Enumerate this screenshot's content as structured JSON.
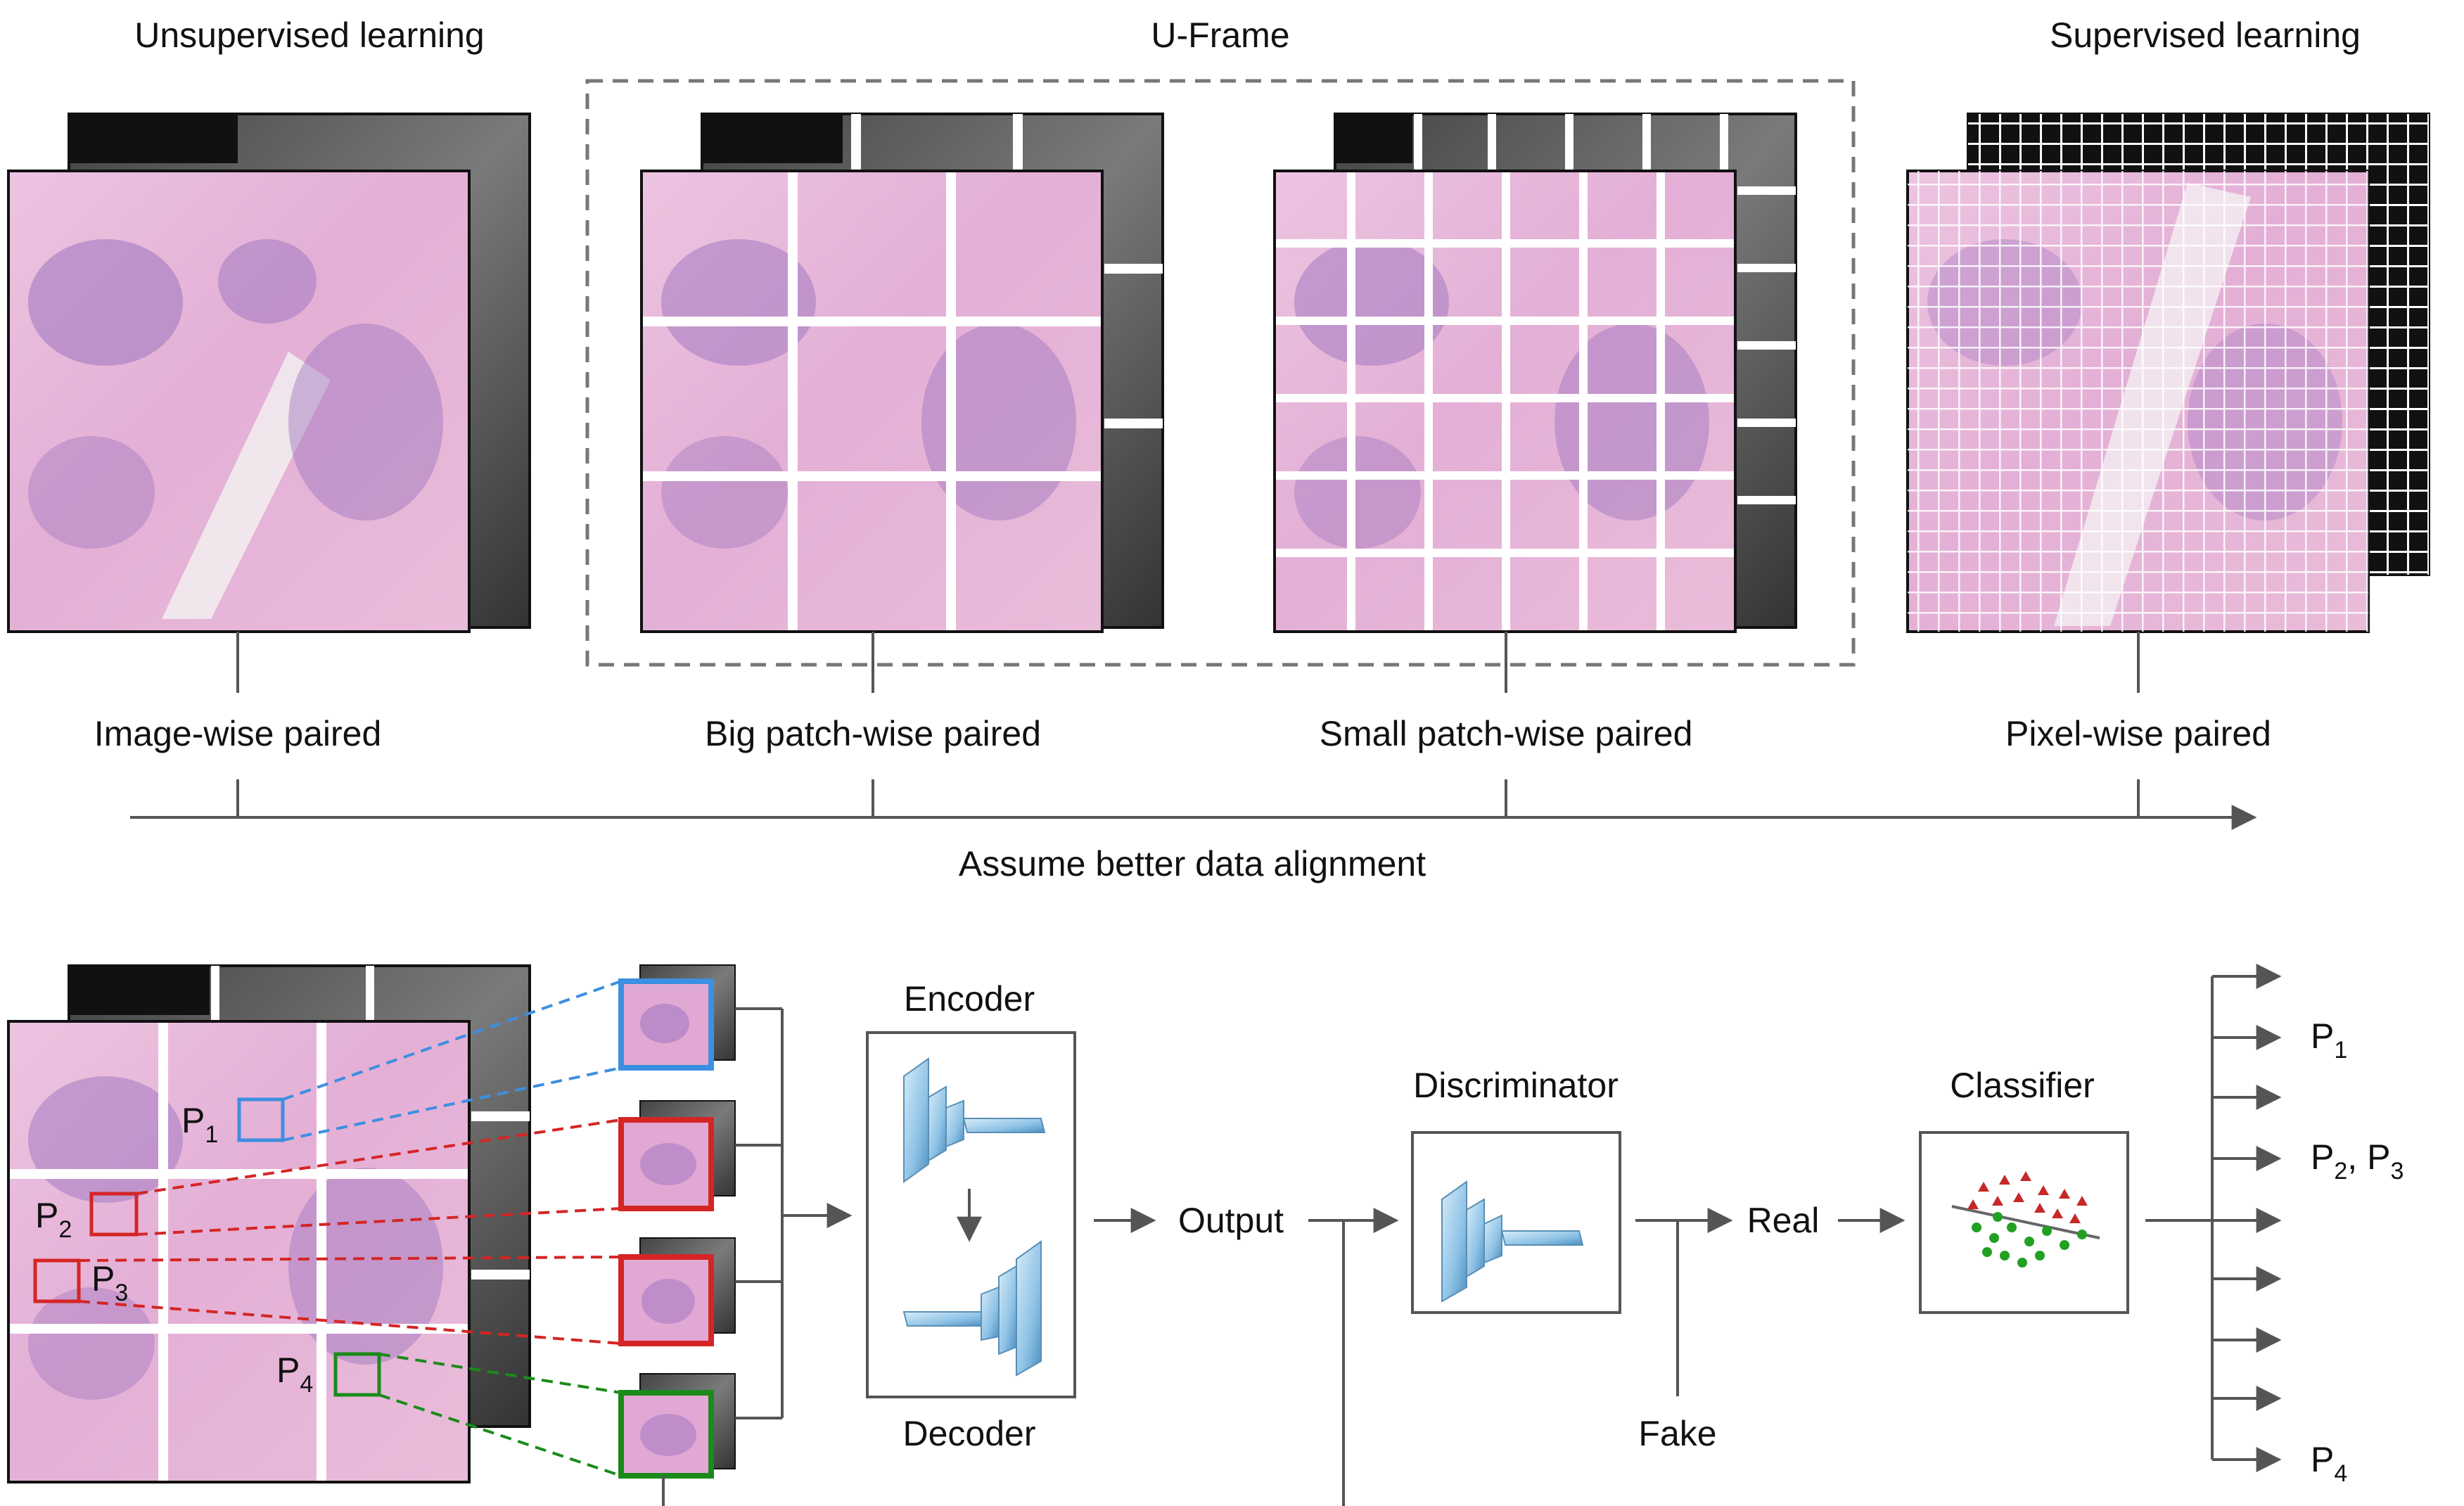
{
  "top": {
    "headings": {
      "unsupervised": "Unsupervised learning",
      "uframe": "U-Frame",
      "supervised": "Supervised learning"
    },
    "pairing_labels": {
      "image_wise": "Image-wise paired",
      "big_patch": "Big patch-wise paired",
      "small_patch": "Small patch-wise paired",
      "pixel_wise": "Pixel-wise paired"
    },
    "axis_label": "Assume better data alignment"
  },
  "bottom": {
    "patch_labels": [
      {
        "letter": "P",
        "sub": "1"
      },
      {
        "letter": "P",
        "sub": "2"
      },
      {
        "letter": "P",
        "sub": "3"
      },
      {
        "letter": "P",
        "sub": "4"
      }
    ],
    "encoder": "Encoder",
    "decoder": "Decoder",
    "output": "Output",
    "discriminator": "Discriminator",
    "real": "Real",
    "fake": "Fake",
    "classifier": "Classifier",
    "results": [
      {
        "letter": "P",
        "sub": "1"
      },
      {
        "letter": "P",
        "sub": "2",
        "letter2": "P",
        "sub2": "3"
      },
      {
        "letter": "P",
        "sub": "4"
      }
    ]
  },
  "colors": {
    "he_pink": "#e9b6d8",
    "he_purple": "#9b74bf",
    "patch_blue": "#3d8fe0",
    "patch_red": "#d42525",
    "patch_green": "#1b8a1b",
    "line_gray": "#555555",
    "dashed_box": "#777777",
    "block_blue": "#8fc3e6"
  }
}
